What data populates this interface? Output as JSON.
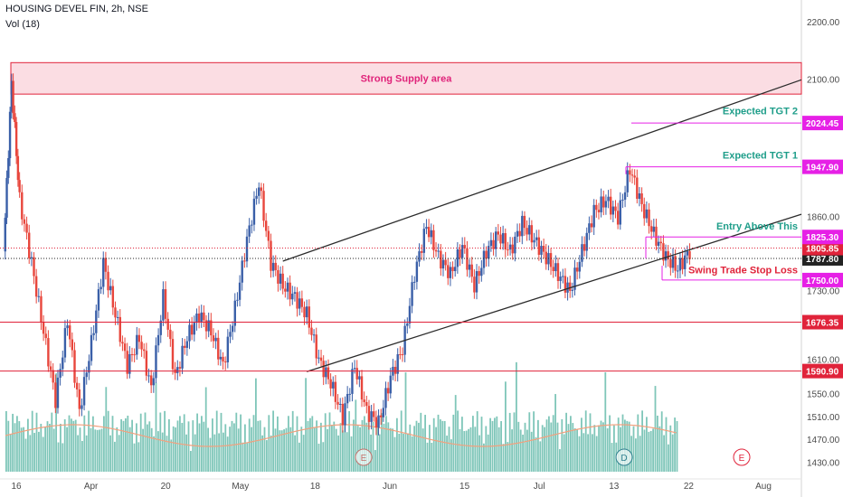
{
  "header": {
    "title": "HOUSING DEVEL FIN, 2h, NSE",
    "volume_label": "Vol (18)"
  },
  "colors": {
    "up": "#3a5fa8",
    "down": "#e8463c",
    "volume": "#7fc6b9",
    "volume_ma": "#f2a07e",
    "supply_fill": "#fbdde3",
    "supply_border": "#e0233a",
    "magenta": "#e620e6",
    "red_line": "#e0233a",
    "channel": "#2b2b2b",
    "teal_text": "#1f9e8a",
    "red_text": "#e0233a",
    "pink_text": "#e0237a"
  },
  "chart_data": {
    "type": "candlestick",
    "title": "HOUSING DEVEL FIN, 2h, NSE",
    "ylim": [
      1415,
      2230
    ],
    "y_ticks": [
      "2200.00",
      "2100.00",
      "1860.00",
      "1730.00",
      "1610.00",
      "1550.00",
      "1510.00",
      "1470.00",
      "1430.00"
    ],
    "x_ticks": [
      "16",
      "Apr",
      "20",
      "May",
      "18",
      "Jun",
      "15",
      "Jul",
      "13",
      "22",
      "Aug"
    ],
    "price_path": [
      {
        "t": 0.0,
        "p": 1800
      },
      {
        "t": 0.01,
        "p": 2095
      },
      {
        "t": 0.02,
        "p": 1890
      },
      {
        "t": 0.035,
        "p": 1780
      },
      {
        "t": 0.05,
        "p": 1660
      },
      {
        "t": 0.065,
        "p": 1540
      },
      {
        "t": 0.08,
        "p": 1680
      },
      {
        "t": 0.095,
        "p": 1520
      },
      {
        "t": 0.11,
        "p": 1640
      },
      {
        "t": 0.125,
        "p": 1780
      },
      {
        "t": 0.14,
        "p": 1690
      },
      {
        "t": 0.155,
        "p": 1600
      },
      {
        "t": 0.17,
        "p": 1650
      },
      {
        "t": 0.185,
        "p": 1560
      },
      {
        "t": 0.2,
        "p": 1720
      },
      {
        "t": 0.215,
        "p": 1580
      },
      {
        "t": 0.23,
        "p": 1650
      },
      {
        "t": 0.245,
        "p": 1690
      },
      {
        "t": 0.26,
        "p": 1660
      },
      {
        "t": 0.275,
        "p": 1600
      },
      {
        "t": 0.29,
        "p": 1700
      },
      {
        "t": 0.305,
        "p": 1820
      },
      {
        "t": 0.32,
        "p": 1920
      },
      {
        "t": 0.335,
        "p": 1780
      },
      {
        "t": 0.35,
        "p": 1740
      },
      {
        "t": 0.365,
        "p": 1720
      },
      {
        "t": 0.38,
        "p": 1690
      },
      {
        "t": 0.395,
        "p": 1610
      },
      {
        "t": 0.41,
        "p": 1570
      },
      {
        "t": 0.425,
        "p": 1510
      },
      {
        "t": 0.44,
        "p": 1600
      },
      {
        "t": 0.455,
        "p": 1520
      },
      {
        "t": 0.47,
        "p": 1500
      },
      {
        "t": 0.485,
        "p": 1580
      },
      {
        "t": 0.5,
        "p": 1630
      },
      {
        "t": 0.515,
        "p": 1760
      },
      {
        "t": 0.53,
        "p": 1845
      },
      {
        "t": 0.545,
        "p": 1790
      },
      {
        "t": 0.56,
        "p": 1760
      },
      {
        "t": 0.575,
        "p": 1810
      },
      {
        "t": 0.59,
        "p": 1740
      },
      {
        "t": 0.605,
        "p": 1800
      },
      {
        "t": 0.62,
        "p": 1830
      },
      {
        "t": 0.635,
        "p": 1800
      },
      {
        "t": 0.65,
        "p": 1850
      },
      {
        "t": 0.665,
        "p": 1820
      },
      {
        "t": 0.68,
        "p": 1790
      },
      {
        "t": 0.695,
        "p": 1760
      },
      {
        "t": 0.71,
        "p": 1730
      },
      {
        "t": 0.725,
        "p": 1800
      },
      {
        "t": 0.74,
        "p": 1870
      },
      {
        "t": 0.755,
        "p": 1890
      },
      {
        "t": 0.77,
        "p": 1860
      },
      {
        "t": 0.785,
        "p": 1945
      },
      {
        "t": 0.8,
        "p": 1880
      },
      {
        "t": 0.815,
        "p": 1830
      },
      {
        "t": 0.83,
        "p": 1790
      },
      {
        "t": 0.845,
        "p": 1770
      },
      {
        "t": 0.86,
        "p": 1800
      }
    ],
    "channel": {
      "upper": {
        "from": {
          "t": 0.35,
          "p": 1783
        },
        "to": {
          "t": 1.0,
          "p": 2100
        }
      },
      "lower": {
        "from": {
          "t": 0.38,
          "p": 1590
        },
        "to": {
          "t": 1.0,
          "p": 1865
        }
      }
    },
    "levels": [
      {
        "value": 1590.9,
        "label": "1590.90",
        "style": "red"
      },
      {
        "value": 1676.35,
        "label": "1676.35",
        "style": "red"
      },
      {
        "value": 1787.8,
        "label": "1787.80",
        "style": "black-dotted"
      },
      {
        "value": 1805.85,
        "label": "1805.85",
        "style": "red-dotted"
      },
      {
        "value": 1825.3,
        "label": "1825.30",
        "style": "magenta"
      },
      {
        "value": 1947.9,
        "label": "1947.90",
        "style": "magenta"
      },
      {
        "value": 2024.45,
        "label": "2024.45",
        "style": "magenta"
      },
      {
        "value": 1750.0,
        "label": "1750.00",
        "style": "magenta"
      }
    ],
    "supply_zone": {
      "low": 2075,
      "high": 2130,
      "label": "Strong Supply area"
    },
    "annotations": [
      {
        "text": "Expected TGT 2",
        "color": "teal"
      },
      {
        "text": "Expected TGT 1",
        "color": "teal"
      },
      {
        "text": "Entry Above This",
        "color": "teal"
      },
      {
        "text": "Swing Trade Stop Loss",
        "color": "red"
      }
    ],
    "events": [
      "E",
      "D",
      "E"
    ]
  }
}
